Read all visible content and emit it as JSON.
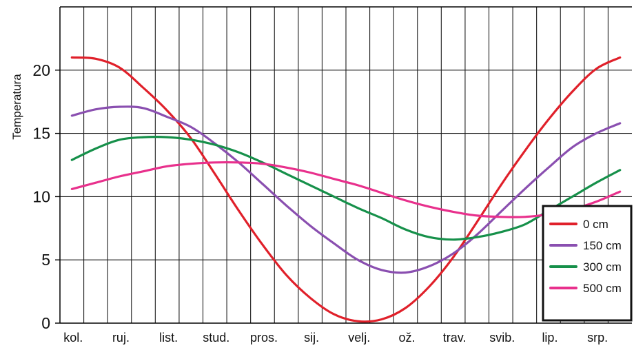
{
  "chart_data": {
    "type": "line",
    "title": "",
    "xlabel": "",
    "ylabel": "Temperatura",
    "categories": [
      "kol.",
      "ruj.",
      "list.",
      "stud.",
      "pros.",
      "sij.",
      "velj.",
      "ož.",
      "trav.",
      "svib.",
      "lip.",
      "srp."
    ],
    "yticks": [
      0,
      5,
      10,
      15,
      20
    ],
    "ylim": [
      0,
      25
    ],
    "grid": true,
    "legend_position": "bottom-right",
    "series": [
      {
        "name": "0 cm",
        "color": "#e0202a",
        "x": [
          0,
          0.5,
          1,
          1.5,
          2,
          2.5,
          3,
          3.5,
          4,
          4.5,
          5,
          5.5,
          6,
          6.5,
          7,
          7.5,
          8,
          8.5,
          9,
          9.5,
          10,
          10.5,
          11,
          11.5
        ],
        "values": [
          21.0,
          20.9,
          20.2,
          18.6,
          16.8,
          14.6,
          11.8,
          8.9,
          6.2,
          3.8,
          2.0,
          0.7,
          0.15,
          0.3,
          1.2,
          2.9,
          5.2,
          8.0,
          10.9,
          13.6,
          16.1,
          18.3,
          20.1,
          21.0
        ]
      },
      {
        "name": "150 cm",
        "color": "#8a4fb0",
        "x": [
          0,
          0.5,
          1,
          1.5,
          2,
          2.5,
          3,
          3.5,
          4,
          4.5,
          5,
          5.5,
          6,
          6.5,
          7,
          7.5,
          8,
          8.5,
          9,
          9.5,
          10,
          10.5,
          11,
          11.5
        ],
        "values": [
          16.4,
          16.9,
          17.1,
          17.0,
          16.3,
          15.5,
          14.2,
          12.7,
          11.0,
          9.3,
          7.7,
          6.3,
          5.0,
          4.2,
          4.0,
          4.5,
          5.5,
          7.0,
          8.8,
          10.6,
          12.3,
          13.9,
          15.0,
          15.8
        ]
      },
      {
        "name": "300 cm",
        "color": "#16904a",
        "x": [
          0,
          0.5,
          1,
          1.5,
          2,
          2.5,
          3,
          3.5,
          4,
          4.5,
          5,
          5.5,
          6,
          6.5,
          7,
          7.5,
          8,
          8.5,
          9,
          9.5,
          10,
          10.5,
          11,
          11.5
        ],
        "values": [
          12.9,
          13.8,
          14.5,
          14.7,
          14.7,
          14.5,
          14.1,
          13.5,
          12.7,
          11.8,
          10.9,
          10.0,
          9.1,
          8.3,
          7.4,
          6.8,
          6.6,
          6.8,
          7.2,
          7.8,
          8.9,
          10.0,
          11.1,
          12.1
        ]
      },
      {
        "name": "500 cm",
        "color": "#e8308c",
        "x": [
          0,
          0.5,
          1,
          1.5,
          2,
          2.5,
          3,
          3.5,
          4,
          4.5,
          5,
          5.5,
          6,
          6.5,
          7,
          7.5,
          8,
          8.5,
          9,
          9.5,
          10,
          10.5,
          11,
          11.5
        ],
        "values": [
          10.6,
          11.1,
          11.6,
          12.0,
          12.4,
          12.6,
          12.7,
          12.7,
          12.6,
          12.3,
          11.9,
          11.4,
          10.9,
          10.3,
          9.7,
          9.2,
          8.8,
          8.5,
          8.4,
          8.4,
          8.6,
          9.0,
          9.6,
          10.4
        ]
      }
    ]
  }
}
